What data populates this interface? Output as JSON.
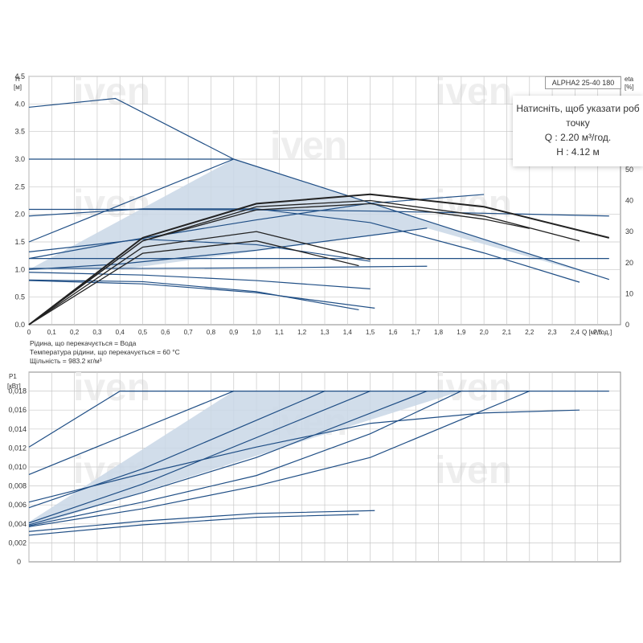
{
  "model_label": "ALPHA2 25-40 180",
  "watermark": "iven",
  "tooltip": {
    "line1": "Натисніть, щоб указати роб",
    "line2": "точку",
    "q_line": "Q : 2.20 м³/год.",
    "h_line": "H : 4.12 м"
  },
  "fluid_info": [
    "Рідина, що перекачується = Вода",
    "Температура рідини, що перекачується = 60 °C",
    "Щільність = 983.2 кг/м³"
  ],
  "colors": {
    "curve": "#1f4e85",
    "fill": "#c9d7e6",
    "eta": "#222222",
    "grid": "#c8c8c8"
  },
  "chart_data": [
    {
      "type": "line",
      "name": "head",
      "ylabel_line1": "H",
      "ylabel_line2": "[м]",
      "y2label_line1": "eta",
      "y2label_line2": "[%]",
      "xlabel": "Q [м³/год.]",
      "xlim": [
        0,
        2.6
      ],
      "ylim": [
        0,
        4.5
      ],
      "y2lim": [
        0,
        80
      ],
      "x_ticks": [
        "0",
        "0,1",
        "0,2",
        "0,3",
        "0,4",
        "0,5",
        "0,6",
        "0,7",
        "0,8",
        "0,9",
        "1,0",
        "1,1",
        "1,2",
        "1,3",
        "1,4",
        "1,5",
        "1,6",
        "1,7",
        "1,8",
        "1,9",
        "2,0",
        "2,1",
        "2,2",
        "2,3",
        "2,4",
        "2,5"
      ],
      "y_ticks": [
        "0.0",
        "0.5",
        "1.0",
        "1.5",
        "2.0",
        "2.5",
        "3.0",
        "3.5",
        "4.0",
        "4.5"
      ],
      "y2_ticks": [
        "0",
        "10",
        "20",
        "30",
        "40",
        "50",
        "60"
      ],
      "area": {
        "x": [
          0,
          0.9,
          2.55,
          2.55,
          1.75,
          0.4,
          0
        ],
        "y": [
          1.0,
          3.0,
          0.82,
          0.82,
          1.75,
          1.0,
          1.0
        ]
      },
      "series": [
        {
          "x": [
            0,
            0.38,
            0.9
          ],
          "y": [
            3.94,
            4.1,
            3.0
          ]
        },
        {
          "x": [
            0,
            0.9
          ],
          "y": [
            3.0,
            3.0
          ]
        },
        {
          "x": [
            0.9,
            2.55
          ],
          "y": [
            3.0,
            0.82
          ]
        },
        {
          "x": [
            0,
            0.9
          ],
          "y": [
            1.5,
            3.0
          ]
        },
        {
          "x": [
            0,
            0.5,
            1.0,
            1.5,
            2.0,
            2.55
          ],
          "y": [
            2.09,
            2.09,
            2.08,
            2.06,
            2.02,
            1.97
          ]
        },
        {
          "x": [
            0,
            0.5,
            1.0,
            1.5,
            2.0,
            2.42
          ],
          "y": [
            1.97,
            2.1,
            2.1,
            1.85,
            1.3,
            0.77
          ]
        },
        {
          "x": [
            0,
            0.5,
            1.0,
            1.5,
            2.0,
            2.55
          ],
          "y": [
            1.2,
            1.2,
            1.2,
            1.2,
            1.2,
            1.2
          ]
        },
        {
          "x": [
            0,
            0.5,
            1.0,
            1.5,
            1.75
          ],
          "y": [
            1.02,
            1.02,
            1.03,
            1.05,
            1.06
          ]
        },
        {
          "x": [
            0,
            0.4,
            1.0,
            1.75
          ],
          "y": [
            1.0,
            1.1,
            1.35,
            1.75
          ]
        },
        {
          "x": [
            0,
            0.4,
            1.0,
            1.5,
            2.0
          ],
          "y": [
            1.2,
            1.5,
            1.9,
            2.2,
            2.36
          ]
        },
        {
          "x": [
            0,
            0.5,
            1.0,
            1.5
          ],
          "y": [
            1.32,
            1.55,
            1.45,
            1.15
          ]
        },
        {
          "x": [
            0,
            0.5,
            1.0,
            1.5
          ],
          "y": [
            0.95,
            0.9,
            0.8,
            0.65
          ]
        },
        {
          "x": [
            0,
            0.5,
            1.0,
            1.52
          ],
          "y": [
            0.8,
            0.74,
            0.58,
            0.3
          ]
        },
        {
          "x": [
            0,
            0.5,
            1.0,
            1.45
          ],
          "y": [
            0.81,
            0.78,
            0.6,
            0.27
          ]
        }
      ],
      "eta_series": [
        {
          "x": [
            0,
            0.5,
            1.0,
            1.5,
            2.0,
            2.55
          ],
          "y": [
            0,
            28,
            39,
            42,
            38,
            28
          ]
        },
        {
          "x": [
            0,
            0.5,
            1.0,
            1.5,
            2.0,
            2.42
          ],
          "y": [
            0,
            27,
            38,
            40,
            35,
            27
          ]
        },
        {
          "x": [
            0,
            0.5,
            1.0,
            1.5,
            2.0,
            2.2
          ],
          "y": [
            0,
            27,
            37,
            39,
            34,
            31
          ]
        },
        {
          "x": [
            0,
            0.5,
            1.0,
            1.5
          ],
          "y": [
            0,
            25,
            30,
            21
          ]
        },
        {
          "x": [
            0,
            0.5,
            1.0,
            1.45
          ],
          "y": [
            0,
            23,
            27,
            19
          ]
        }
      ]
    },
    {
      "type": "line",
      "name": "power",
      "ylabel_line1": "P1",
      "ylabel_line2": "[кВт]",
      "xlim": [
        0,
        2.6
      ],
      "ylim": [
        0,
        0.02
      ],
      "y_ticks": [
        "0",
        "0,002",
        "0,004",
        "0,006",
        "0,008",
        "0,010",
        "0,012",
        "0,014",
        "0,016",
        "0,018"
      ],
      "area": {
        "x": [
          0,
          0.9,
          1.9,
          1.9,
          0,
          0
        ],
        "y": [
          0.0042,
          0.018,
          0.018,
          0.018,
          0.0036,
          0.0042
        ]
      },
      "series": [
        {
          "x": [
            0,
            0.4,
            2.55
          ],
          "y": [
            0.0121,
            0.018,
            0.018
          ]
        },
        {
          "x": [
            0,
            0.9
          ],
          "y": [
            0.0092,
            0.018
          ]
        },
        {
          "x": [
            0,
            0.5,
            1.0,
            1.5,
            2.0,
            2.42
          ],
          "y": [
            0.0063,
            0.0093,
            0.0121,
            0.0146,
            0.0157,
            0.016
          ]
        },
        {
          "x": [
            0,
            0.5,
            1.3
          ],
          "y": [
            0.0057,
            0.0098,
            0.018
          ]
        },
        {
          "x": [
            0,
            0.5,
            1.5
          ],
          "y": [
            0.0041,
            0.0082,
            0.018
          ]
        },
        {
          "x": [
            0,
            0.5,
            1.0,
            1.75
          ],
          "y": [
            0.0039,
            0.0073,
            0.011,
            0.018
          ]
        },
        {
          "x": [
            0,
            0.5,
            1.0,
            1.5,
            1.9
          ],
          "y": [
            0.0038,
            0.0063,
            0.0091,
            0.0135,
            0.018
          ]
        },
        {
          "x": [
            0,
            0.5,
            1.0,
            1.5,
            2.2
          ],
          "y": [
            0.0037,
            0.0056,
            0.008,
            0.011,
            0.018
          ]
        },
        {
          "x": [
            0,
            0.5,
            1.0,
            1.52
          ],
          "y": [
            0.0032,
            0.0043,
            0.0051,
            0.0054
          ]
        },
        {
          "x": [
            0,
            0.5,
            1.0,
            1.45
          ],
          "y": [
            0.0028,
            0.0039,
            0.0047,
            0.005
          ]
        }
      ]
    }
  ]
}
